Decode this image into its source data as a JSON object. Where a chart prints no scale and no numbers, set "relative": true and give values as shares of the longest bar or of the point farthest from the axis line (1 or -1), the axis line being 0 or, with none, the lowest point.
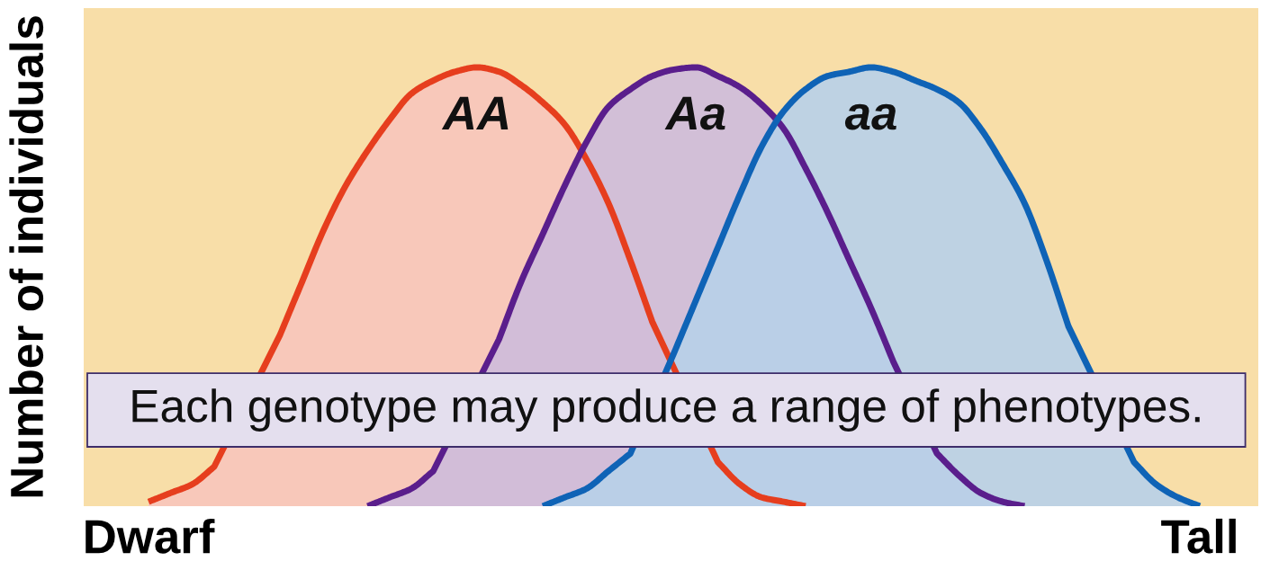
{
  "chart_data": {
    "type": "area",
    "relative": true,
    "ylabel": "Number of individuals",
    "categories": [
      "Dwarf",
      null,
      null,
      null,
      null,
      null,
      null,
      null,
      null,
      null,
      null,
      null,
      null,
      null,
      null,
      null,
      null,
      null,
      null,
      null,
      null,
      null,
      null,
      null,
      null,
      null,
      null,
      null,
      null,
      null,
      null,
      null,
      null,
      null,
      null,
      null,
      null,
      null,
      null,
      null,
      null,
      null,
      null,
      null,
      null,
      null,
      null,
      null,
      "Tall"
    ],
    "series": [
      {
        "name": "AA",
        "color": "#e63e1e",
        "values": [
          0.01,
          0.03,
          0.05,
          0.09,
          null,
          null,
          0.39,
          0.51,
          0.63,
          0.73,
          0.81,
          0.88,
          0.94,
          0.97,
          0.99,
          1.0,
          0.99,
          0.96,
          0.92,
          0.87,
          0.79,
          0.69,
          0.56,
          0.42,
          null,
          null,
          0.1,
          0.05,
          0.02,
          0.01,
          0,
          null,
          null,
          null,
          null,
          null,
          null,
          null,
          null,
          null,
          null,
          null,
          null,
          null,
          null,
          null,
          null,
          null,
          null
        ]
      },
      {
        "name": "Aa",
        "color": "#5a1e8c",
        "values": [
          null,
          null,
          null,
          null,
          null,
          null,
          null,
          null,
          null,
          null,
          0,
          0.02,
          0.04,
          0.08,
          null,
          null,
          0.38,
          0.51,
          0.62,
          0.73,
          0.83,
          0.91,
          0.95,
          0.98,
          0.995,
          1.0,
          0.98,
          0.955,
          0.915,
          0.86,
          0.77,
          0.67,
          0.56,
          0.45,
          0.33,
          null,
          0.12,
          0.07,
          0.03,
          0.01,
          0,
          null,
          null,
          null,
          null,
          null,
          null,
          null,
          null
        ]
      },
      {
        "name": "aa",
        "color": "#0f63b6",
        "values": [
          null,
          null,
          null,
          null,
          null,
          null,
          null,
          null,
          null,
          null,
          null,
          null,
          null,
          null,
          null,
          null,
          null,
          null,
          0,
          0.02,
          0.04,
          0.08,
          0.12,
          null,
          0.35,
          0.47,
          0.59,
          0.71,
          0.82,
          0.9,
          0.95,
          0.98,
          0.99,
          1.0,
          0.99,
          0.97,
          0.95,
          0.92,
          0.86,
          0.78,
          0.69,
          0.56,
          0.41,
          null,
          null,
          0.1,
          0.05,
          0.02,
          0
        ]
      }
    ],
    "annotations": [
      "Each genotype may produce a range of phenotypes."
    ]
  }
}
